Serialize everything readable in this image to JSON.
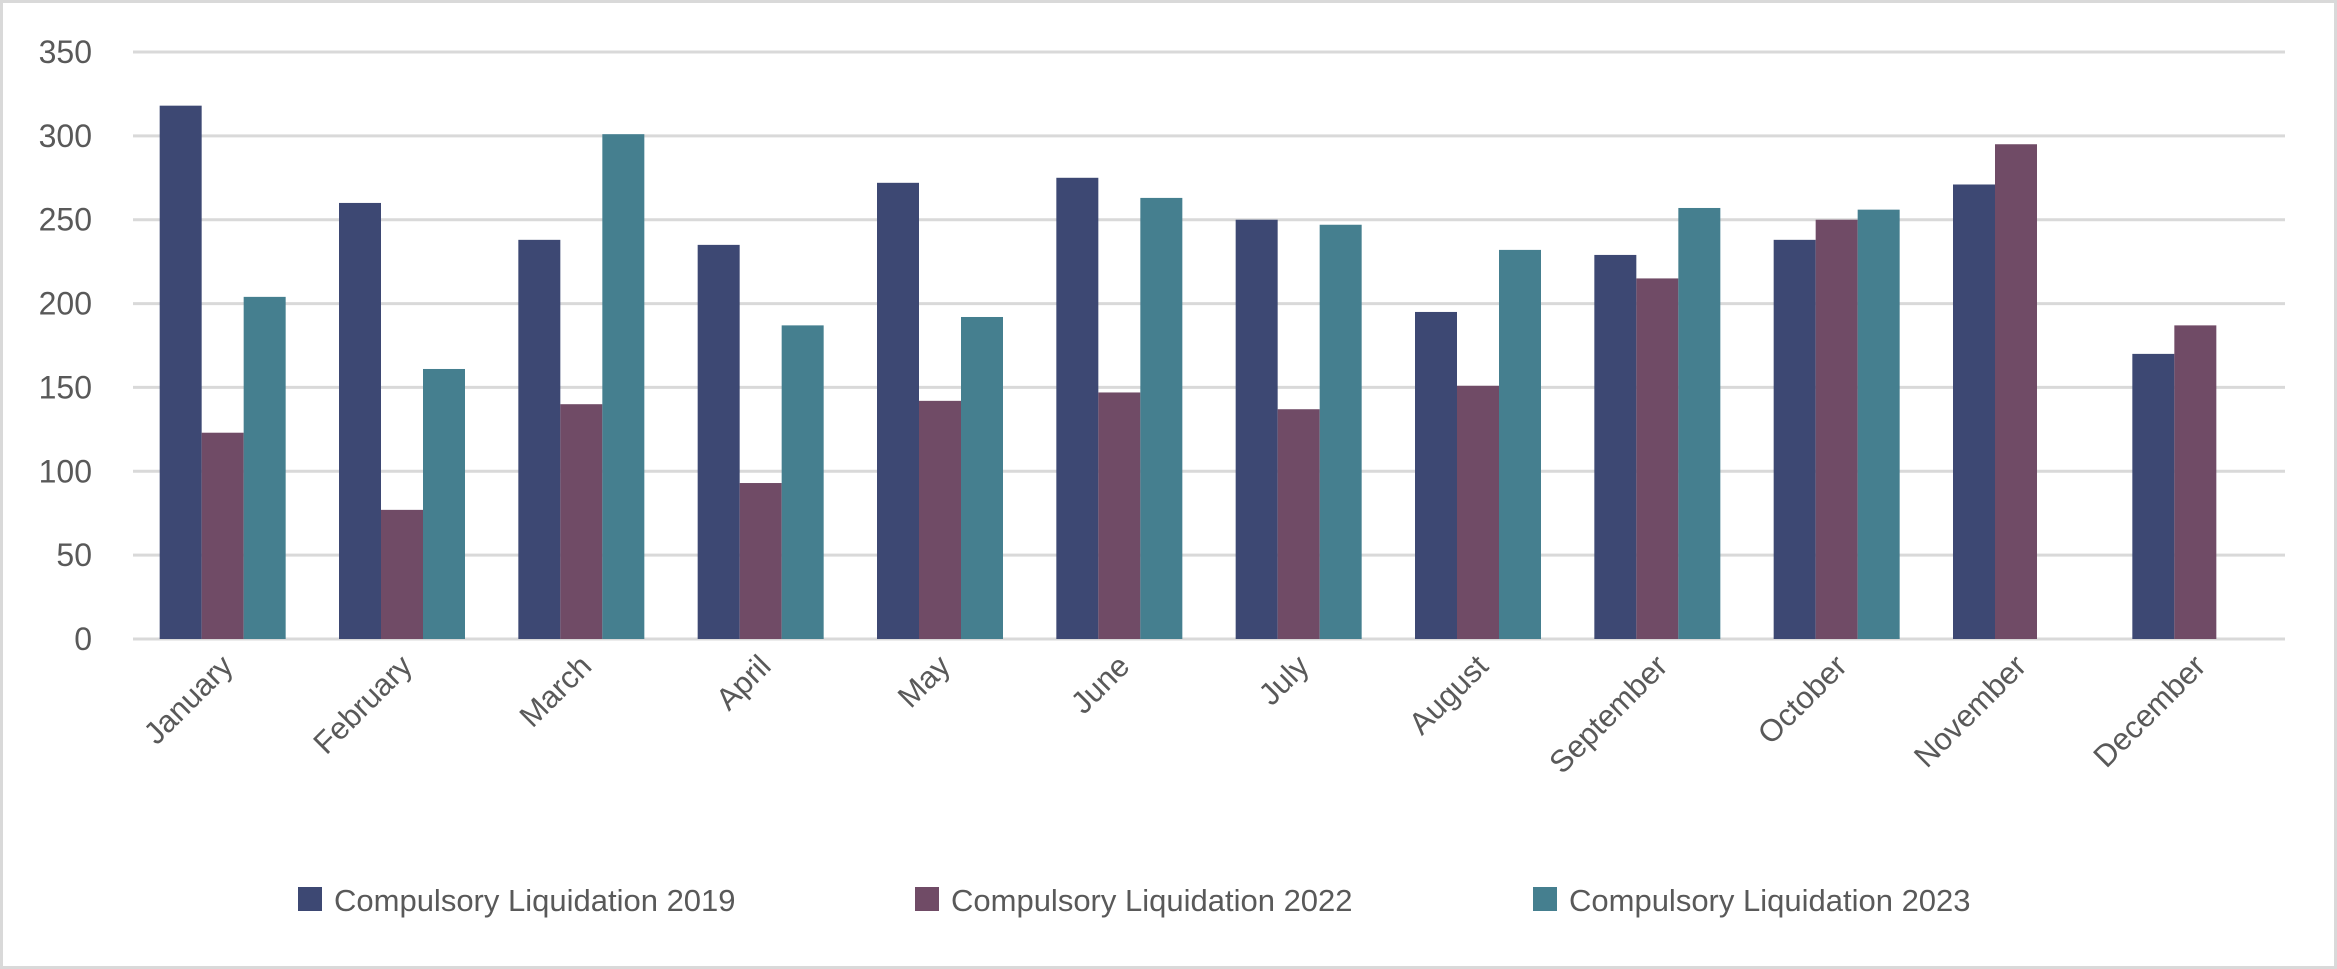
{
  "chart_data": {
    "type": "bar",
    "title": "",
    "xlabel": "",
    "ylabel": "",
    "ylim": [
      0,
      350
    ],
    "yticks": [
      "0",
      "50",
      "100",
      "150",
      "200",
      "250",
      "300",
      "350"
    ],
    "grid": true,
    "legend_position": "bottom",
    "categories": [
      "January",
      "February",
      "March",
      "April",
      "May",
      "June",
      "July",
      "August",
      "September",
      "October",
      "November",
      "December"
    ],
    "series": [
      {
        "name": "Compulsory Liquidation 2019",
        "color": "#3d4873",
        "values": [
          318,
          260,
          238,
          235,
          272,
          275,
          250,
          195,
          229,
          238,
          271,
          170
        ]
      },
      {
        "name": "Compulsory Liquidation 2022",
        "color": "#704b66",
        "values": [
          123,
          77,
          140,
          93,
          142,
          147,
          137,
          151,
          215,
          250,
          295,
          187
        ]
      },
      {
        "name": "Compulsory Liquidation 2023",
        "color": "#457f8f",
        "values": [
          204,
          161,
          301,
          187,
          192,
          263,
          247,
          232,
          257,
          256,
          null,
          null
        ]
      }
    ]
  }
}
